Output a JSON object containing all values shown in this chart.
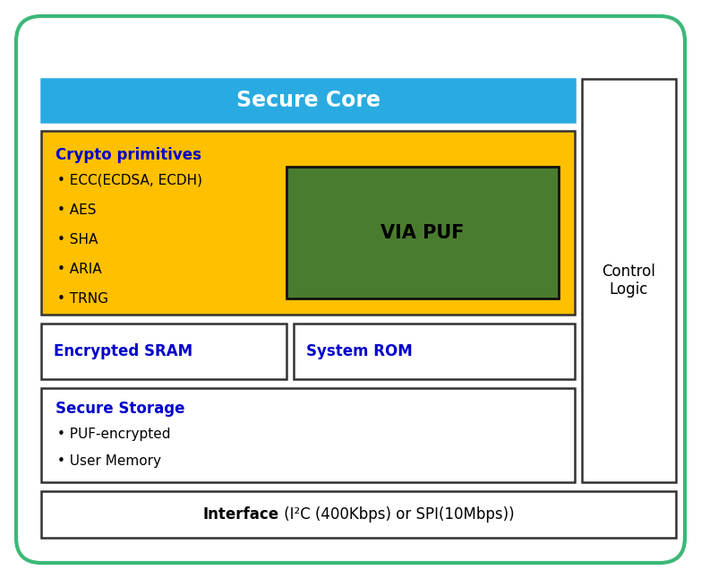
{
  "fig_w": 7.83,
  "fig_h": 6.46,
  "dpi": 100,
  "bg": "#ffffff",
  "outer_ec": "#3CB878",
  "outer_lw": 3.0,
  "secure_core_fc": "#29ABE2",
  "secure_core_text": "Secure Core",
  "secure_core_tc": "#ffffff",
  "crypto_fc": "#FFC000",
  "crypto_ec": "#333333",
  "crypto_title": "Crypto primitives",
  "crypto_title_tc": "#0000CC",
  "crypto_bullets": [
    "ECC(ECDSA, ECDH)",
    "AES",
    "SHA",
    "ARIA",
    "TRNG"
  ],
  "crypto_bullet_tc": "#000000",
  "puf_fc": "#4A7C2F",
  "puf_ec": "#111111",
  "puf_text": "VIA PUF",
  "puf_tc": "#000000",
  "sram_fc": "#ffffff",
  "sram_ec": "#333333",
  "sram_text": "Encrypted SRAM",
  "sram_tc": "#0000CC",
  "rom_fc": "#ffffff",
  "rom_ec": "#333333",
  "rom_text": "System ROM",
  "rom_tc": "#0000CC",
  "storage_fc": "#ffffff",
  "storage_ec": "#333333",
  "storage_title": "Secure Storage",
  "storage_title_tc": "#0000CC",
  "storage_bullets": [
    "PUF-encrypted",
    "User Memory"
  ],
  "storage_bullet_tc": "#000000",
  "ctrl_fc": "#ffffff",
  "ctrl_ec": "#333333",
  "ctrl_text": "Control\nLogic",
  "ctrl_tc": "#000000",
  "intf_fc": "#ffffff",
  "intf_ec": "#333333",
  "intf_bold": "Interface",
  "intf_normal": " (I²C (400Kbps) or SPI(10Mbps))",
  "intf_tc": "#000000"
}
